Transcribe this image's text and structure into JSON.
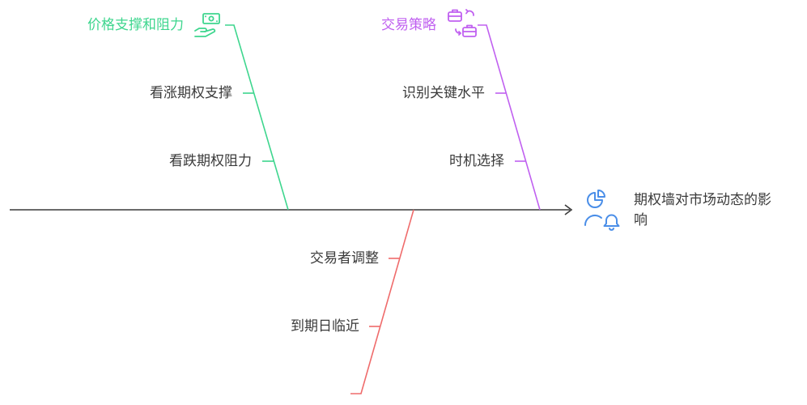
{
  "effect": {
    "line1": "期权墙对市场动态的影",
    "line2": "响",
    "icon": "user-chart-bell-icon"
  },
  "branches": [
    {
      "title": "价格支撑和阻力",
      "icon": "cash-in-hand-icon",
      "color": "#3ed68e",
      "causes": [
        "看涨期权支撑",
        "看跌期权阻力"
      ]
    },
    {
      "title": "交易策略",
      "icon": "briefcase-swap-icon",
      "color": "#c060f0",
      "causes": [
        "识别关键水平",
        "时机选择"
      ]
    },
    {
      "title": "",
      "color": "#ef6b6b",
      "causes": [
        "交易者调整",
        "到期日临近"
      ]
    }
  ],
  "colors": {
    "spine": "#3a3a3a",
    "icon_blue": "#4a8ee8"
  }
}
